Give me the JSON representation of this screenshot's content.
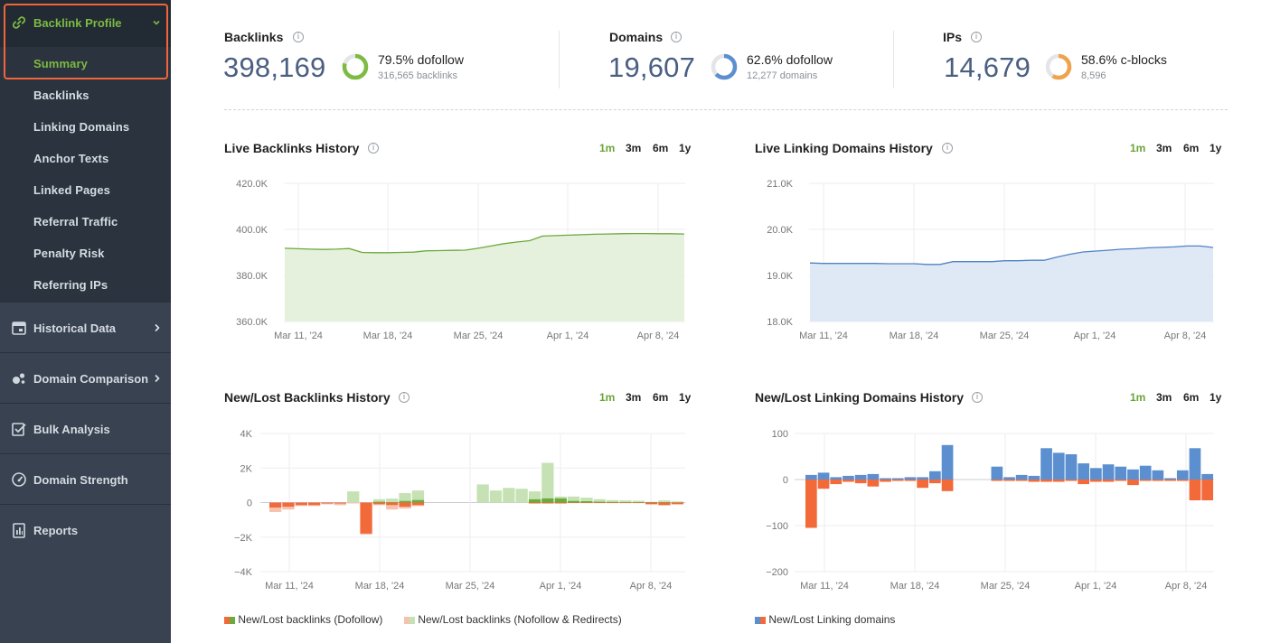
{
  "sidebar": {
    "header": {
      "label": "Backlink Profile"
    },
    "items": [
      {
        "label": "Summary",
        "active": true
      },
      {
        "label": "Backlinks"
      },
      {
        "label": "Linking Domains"
      },
      {
        "label": "Anchor Texts"
      },
      {
        "label": "Linked Pages"
      },
      {
        "label": "Referral Traffic"
      },
      {
        "label": "Penalty Risk"
      },
      {
        "label": "Referring IPs"
      }
    ],
    "sections": [
      {
        "label": "Historical Data",
        "icon": "calendar-icon",
        "chevron": true
      },
      {
        "label": "Domain Comparison",
        "icon": "bubbles-icon",
        "chevron": true
      },
      {
        "label": "Bulk Analysis",
        "icon": "checklist-icon",
        "chevron": false
      },
      {
        "label": "Domain Strength",
        "icon": "gauge-icon",
        "chevron": false
      },
      {
        "label": "Reports",
        "icon": "report-icon",
        "chevron": false
      }
    ]
  },
  "kpis": {
    "backlinks": {
      "label": "Backlinks",
      "value": "398,169",
      "pct": "79.5% dofollow",
      "sub": "316,565 backlinks",
      "fraction": 0.795,
      "color": "#7dbb42"
    },
    "domains": {
      "label": "Domains",
      "value": "19,607",
      "pct": "62.6% dofollow",
      "sub": "12,277 domains",
      "fraction": 0.626,
      "color": "#5b8fd0"
    },
    "ips": {
      "label": "IPs",
      "value": "14,679",
      "pct": "58.6% c-blocks",
      "sub": "8,596",
      "fraction": 0.586,
      "color": "#efa44b"
    }
  },
  "ranges": [
    "1m",
    "3m",
    "6m",
    "1y"
  ],
  "charts": {
    "live_backlinks": {
      "title": "Live Backlinks History",
      "selected_range": "1m"
    },
    "live_domains": {
      "title": "Live Linking Domains History",
      "selected_range": "1m"
    },
    "newlost_backlinks": {
      "title": "New/Lost Backlinks History",
      "selected_range": "1m",
      "legend1": "New/Lost backlinks (Dofollow)",
      "legend2": "New/Lost backlinks (Nofollow & Redirects)"
    },
    "newlost_domains": {
      "title": "New/Lost Linking Domains History",
      "selected_range": "1m",
      "legend1": "New/Lost Linking domains"
    }
  },
  "chart_data": [
    {
      "id": "live_backlinks",
      "type": "area",
      "title": "Live Backlinks History",
      "x_ticks": [
        "Mar 11, '24",
        "Mar 18, '24",
        "Mar 25, '24",
        "Apr 1, '24",
        "Apr 8, '24"
      ],
      "y_ticks": [
        "360.0K",
        "380.0K",
        "400.0K",
        "420.0K"
      ],
      "ylim": [
        360000,
        420000
      ],
      "color": "#6aab3c",
      "fill": "#e5f0dd",
      "values": [
        391800,
        391600,
        391400,
        391300,
        391400,
        391700,
        390000,
        389900,
        389900,
        390000,
        390100,
        390700,
        390800,
        390900,
        391000,
        391800,
        392800,
        393800,
        394500,
        395100,
        397100,
        397300,
        397500,
        397700,
        397900,
        398000,
        398100,
        398200,
        398200,
        398100,
        398100,
        398000
      ]
    },
    {
      "id": "live_domains",
      "type": "area",
      "title": "Live Linking Domains History",
      "x_ticks": [
        "Mar 11, '24",
        "Mar 18, '24",
        "Mar 25, '24",
        "Apr 1, '24",
        "Apr 8, '24"
      ],
      "y_ticks": [
        "18.0K",
        "19.0K",
        "20.0K",
        "21.0K"
      ],
      "ylim": [
        18000,
        21000
      ],
      "color": "#4f83c4",
      "fill": "#dfe8f5",
      "values": [
        19270,
        19260,
        19260,
        19260,
        19260,
        19260,
        19255,
        19255,
        19255,
        19240,
        19240,
        19300,
        19300,
        19300,
        19300,
        19320,
        19320,
        19330,
        19330,
        19400,
        19460,
        19510,
        19530,
        19550,
        19570,
        19580,
        19600,
        19610,
        19620,
        19640,
        19640,
        19607
      ]
    },
    {
      "id": "newlost_backlinks",
      "type": "bar",
      "title": "New/Lost Backlinks History",
      "x_ticks": [
        "Mar 11, '24",
        "Mar 18, '24",
        "Mar 25, '24",
        "Apr 1, '24",
        "Apr 8, '24"
      ],
      "y_ticks": [
        "−4K",
        "−2K",
        "0",
        "2K",
        "4K"
      ],
      "ylim": [
        -4000,
        4000
      ],
      "series": [
        {
          "name": "New/Lost backlinks (Dofollow)",
          "new_color": "#6aab3c",
          "lost_color": "#f2693a",
          "new": [
            0,
            0,
            0,
            0,
            0,
            0,
            0,
            0,
            50,
            30,
            100,
            150,
            0,
            0,
            0,
            0,
            0,
            0,
            0,
            0,
            200,
            250,
            250,
            100,
            80,
            50,
            40,
            30,
            30,
            30,
            30,
            20
          ],
          "lost": [
            -300,
            -250,
            -150,
            -150,
            -50,
            -50,
            0,
            -1800,
            -100,
            -150,
            -250,
            -150,
            0,
            0,
            0,
            0,
            0,
            0,
            0,
            0,
            -50,
            -50,
            -50,
            -30,
            -30,
            -30,
            -30,
            -30,
            -30,
            -100,
            -150,
            -100
          ]
        },
        {
          "name": "New/Lost backlinks (Nofollow & Redirects)",
          "new_color": "#c6e2b4",
          "lost_color": "#f7c2ad",
          "new": [
            0,
            0,
            0,
            0,
            0,
            0,
            650,
            0,
            150,
            200,
            450,
            550,
            0,
            0,
            0,
            0,
            1050,
            700,
            850,
            800,
            450,
            2050,
            100,
            250,
            200,
            150,
            100,
            100,
            80,
            0,
            100,
            50
          ],
          "lost": [
            -250,
            -150,
            -50,
            -50,
            -50,
            -100,
            -50,
            -50,
            -50,
            -250,
            -100,
            -50,
            0,
            0,
            0,
            0,
            0,
            0,
            0,
            0,
            0,
            0,
            0,
            0,
            0,
            0,
            0,
            0,
            0,
            0,
            0,
            0
          ]
        }
      ]
    },
    {
      "id": "newlost_domains",
      "type": "bar",
      "title": "New/Lost Linking Domains History",
      "x_ticks": [
        "Mar 11, '24",
        "Mar 18, '24",
        "Mar 25, '24",
        "Apr 1, '24",
        "Apr 8, '24"
      ],
      "y_ticks": [
        "−200",
        "−100",
        "0",
        "100"
      ],
      "ylim": [
        -200,
        100
      ],
      "series": [
        {
          "name": "New/Lost Linking domains",
          "new_color": "#5b8fd0",
          "lost_color": "#f2693a",
          "new": [
            10,
            15,
            5,
            8,
            10,
            12,
            3,
            3,
            5,
            5,
            18,
            75,
            0,
            0,
            0,
            28,
            5,
            10,
            8,
            68,
            58,
            55,
            35,
            25,
            33,
            28,
            22,
            30,
            20,
            3,
            20,
            68,
            12
          ],
          "lost": [
            -105,
            -20,
            -10,
            -5,
            -8,
            -15,
            -5,
            -3,
            -3,
            -18,
            -8,
            -25,
            0,
            0,
            0,
            -3,
            -3,
            -3,
            -5,
            -5,
            -5,
            -3,
            -10,
            -5,
            -5,
            -3,
            -12,
            -3,
            -3,
            -3,
            -3,
            -45,
            -45
          ]
        }
      ]
    }
  ]
}
